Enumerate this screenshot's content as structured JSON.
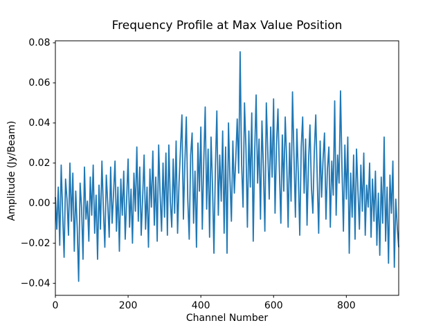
{
  "figure": {
    "background": "#ffffff"
  },
  "chart_data": {
    "type": "line",
    "title": "Frequency Profile at Max Value Position",
    "xlabel": "Channel Number",
    "ylabel": "Amplitude (Jy/Beam)",
    "line_color": "#1f77b4",
    "grid": false,
    "legend": null,
    "xlim": [
      0,
      944
    ],
    "ylim": [
      -0.046,
      0.081
    ],
    "x_ticks": [
      0,
      200,
      400,
      600,
      800
    ],
    "x_tick_labels": [
      "0",
      "200",
      "400",
      "600",
      "800"
    ],
    "y_ticks": [
      0.08,
      0.06,
      0.04,
      0.02,
      0.0,
      -0.02,
      -0.04
    ],
    "y_tick_labels": [
      "0.08",
      "0.06",
      "0.04",
      "0.02",
      "0.00",
      "−0.02",
      "−0.04"
    ],
    "x_start": 0,
    "x_step": 4,
    "y": [
      0.003,
      -0.013,
      0.008,
      -0.021,
      0.019,
      -0.005,
      -0.027,
      0.012,
      0.002,
      -0.016,
      0.02,
      -0.009,
      0.015,
      -0.024,
      0.006,
      -0.012,
      -0.039,
      0.01,
      -0.002,
      -0.028,
      0.018,
      -0.008,
      0.001,
      -0.019,
      0.013,
      -0.006,
      0.019,
      -0.015,
      0.004,
      -0.028,
      0.009,
      -0.013,
      0.021,
      -0.003,
      -0.022,
      0.014,
      0.0,
      -0.017,
      0.018,
      -0.01,
      0.005,
      0.021,
      -0.014,
      0.008,
      -0.024,
      0.012,
      -0.006,
      0.016,
      -0.018,
      0.002,
      0.022,
      -0.012,
      0.007,
      -0.02,
      0.015,
      -0.004,
      0.028,
      -0.009,
      0.018,
      -0.016,
      0.003,
      0.024,
      -0.013,
      0.008,
      -0.022,
      0.017,
      -0.002,
      0.026,
      -0.011,
      0.013,
      -0.019,
      0.029,
      0.004,
      -0.014,
      0.02,
      -0.007,
      0.025,
      -0.016,
      0.029,
      0.001,
      -0.012,
      0.022,
      -0.005,
      0.031,
      -0.015,
      0.01,
      0.027,
      0.044,
      -0.008,
      0.02,
      0.043,
      0.002,
      -0.018,
      0.024,
      0.035,
      -0.01,
      0.016,
      -0.022,
      0.03,
      0.006,
      0.038,
      -0.013,
      0.021,
      0.048,
      -0.003,
      0.027,
      -0.017,
      0.033,
      0.009,
      -0.025,
      0.018,
      0.046,
      -0.006,
      0.024,
      0.001,
      0.036,
      -0.015,
      0.028,
      -0.025,
      0.04,
      0.012,
      -0.009,
      0.031,
      0.005,
      0.022,
      0.042,
      0.015,
      0.0755,
      0.02,
      -0.002,
      0.05,
      0.028,
      -0.012,
      0.036,
      0.008,
      0.045,
      -0.019,
      0.025,
      0.054,
      0.01,
      0.032,
      -0.008,
      0.041,
      0.018,
      -0.014,
      0.05,
      0.026,
      0.002,
      0.038,
      0.013,
      0.052,
      -0.005,
      0.029,
      0.047,
      0.016,
      -0.01,
      0.034,
      0.006,
      0.043,
      0.021,
      -0.012,
      0.03,
      0.001,
      0.0555,
      0.024,
      -0.007,
      0.037,
      0.014,
      -0.016,
      0.028,
      0.043,
      0.005,
      0.032,
      -0.011,
      0.02,
      0.039,
      0.008,
      -0.005,
      0.026,
      0.044,
      0.012,
      -0.015,
      0.031,
      0.003,
      0.022,
      0.035,
      -0.008,
      0.017,
      0.028,
      -0.012,
      0.021,
      0.004,
      0.051,
      -0.006,
      0.024,
      0.01,
      0.056,
      0.018,
      -0.014,
      0.029,
      0.002,
      0.033,
      -0.025,
      0.015,
      -0.007,
      0.024,
      -0.018,
      0.027,
      0.006,
      -0.013,
      0.019,
      -0.004,
      0.025,
      -0.016,
      0.009,
      -0.002,
      0.02,
      -0.017,
      0.012,
      -0.009,
      0.016,
      -0.021,
      0.005,
      -0.026,
      0.013,
      -0.01,
      0.033,
      -0.019,
      0.008,
      -0.03,
      0.014,
      -0.005,
      0.021,
      -0.032,
      0.002,
      -0.012,
      -0.022
    ]
  }
}
